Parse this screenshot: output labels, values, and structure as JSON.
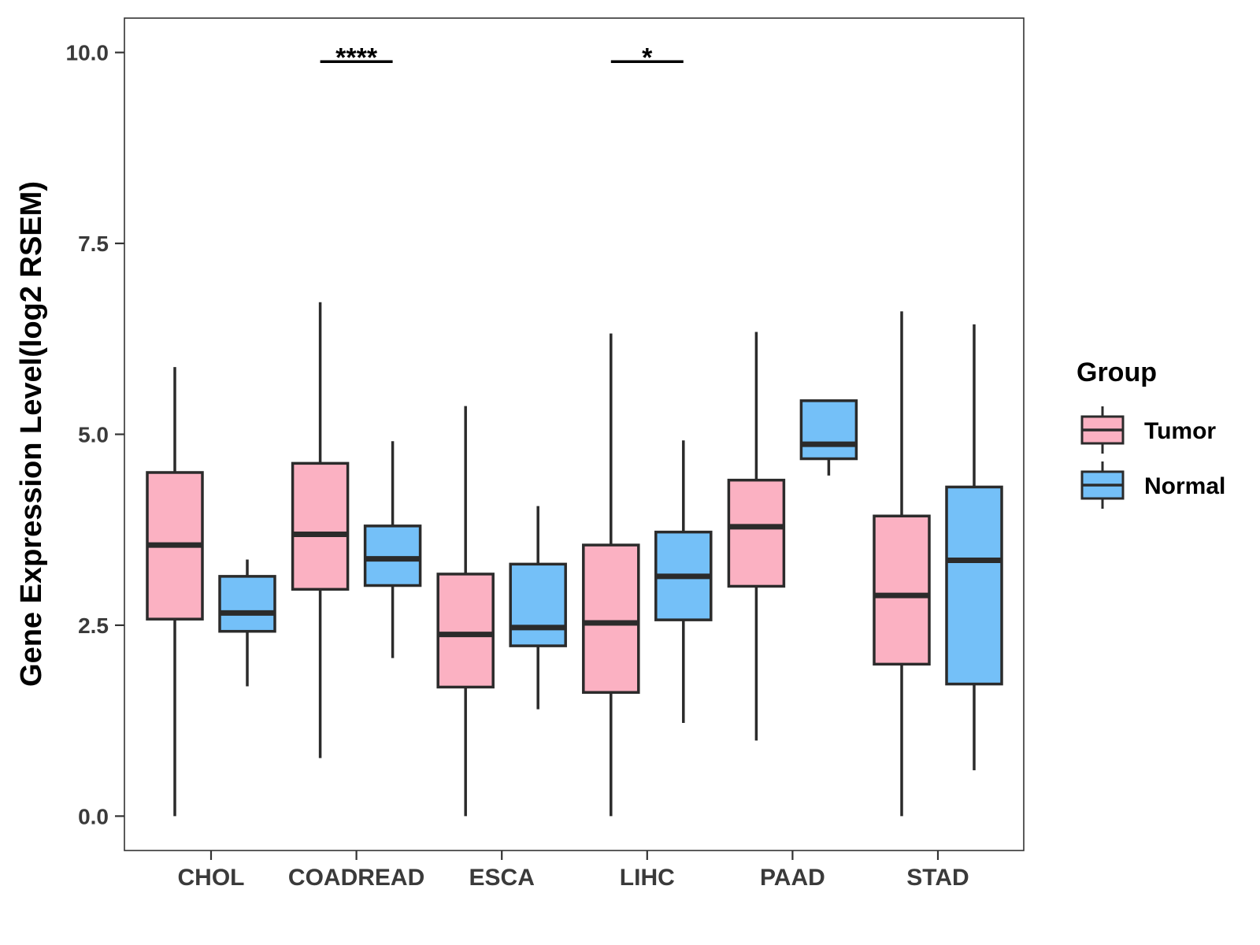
{
  "chart_data": {
    "type": "boxplot",
    "title": "",
    "xlabel": "",
    "ylabel": "Gene Expression Level(log2 RSEM)",
    "ylim": [
      -0.45,
      10.45
    ],
    "yticks": [
      0.0,
      2.5,
      5.0,
      7.5,
      10.0
    ],
    "ytick_labels": [
      "0.0",
      "2.5",
      "5.0",
      "7.5",
      "10.0"
    ],
    "grid": false,
    "categories": [
      "CHOL",
      "COADREAD",
      "ESCA",
      "LIHC",
      "PAAD",
      "STAD"
    ],
    "legend": {
      "title": "Group",
      "position": "right",
      "entries": [
        {
          "name": "Tumor",
          "color": "#FBB1C2"
        },
        {
          "name": "Normal",
          "color": "#74C0F8"
        }
      ]
    },
    "series": [
      {
        "name": "Tumor",
        "color": "#FBB1C2",
        "boxes": [
          {
            "category": "CHOL",
            "min": 0.0,
            "q1": 2.58,
            "median": 3.55,
            "q3": 4.5,
            "max": 5.88
          },
          {
            "category": "COADREAD",
            "min": 0.76,
            "q1": 2.97,
            "median": 3.69,
            "q3": 4.62,
            "max": 6.73
          },
          {
            "category": "ESCA",
            "min": 0.0,
            "q1": 1.69,
            "median": 2.38,
            "q3": 3.17,
            "max": 5.37
          },
          {
            "category": "LIHC",
            "min": 0.0,
            "q1": 1.62,
            "median": 2.53,
            "q3": 3.55,
            "max": 6.32
          },
          {
            "category": "PAAD",
            "min": 0.99,
            "q1": 3.01,
            "median": 3.79,
            "q3": 4.4,
            "max": 6.34
          },
          {
            "category": "STAD",
            "min": 0.0,
            "q1": 1.99,
            "median": 2.89,
            "q3": 3.93,
            "max": 6.61
          }
        ]
      },
      {
        "name": "Normal",
        "color": "#74C0F8",
        "boxes": [
          {
            "category": "CHOL",
            "min": 1.7,
            "q1": 2.42,
            "median": 2.66,
            "q3": 3.14,
            "max": 3.36
          },
          {
            "category": "COADREAD",
            "min": 2.07,
            "q1": 3.02,
            "median": 3.37,
            "q3": 3.8,
            "max": 4.91
          },
          {
            "category": "ESCA",
            "min": 1.4,
            "q1": 2.23,
            "median": 2.47,
            "q3": 3.3,
            "max": 4.06
          },
          {
            "category": "LIHC",
            "min": 1.22,
            "q1": 2.57,
            "median": 3.14,
            "q3": 3.72,
            "max": 4.92
          },
          {
            "category": "PAAD",
            "min": 4.46,
            "q1": 4.68,
            "median": 4.87,
            "q3": 5.44,
            "max": 5.44
          },
          {
            "category": "STAD",
            "min": 0.6,
            "q1": 1.73,
            "median": 3.35,
            "q3": 4.31,
            "max": 6.44
          }
        ]
      }
    ],
    "annotations": [
      {
        "category": "COADREAD",
        "text": "****",
        "y": 9.88
      },
      {
        "category": "LIHC",
        "text": "*",
        "y": 9.88
      }
    ]
  }
}
